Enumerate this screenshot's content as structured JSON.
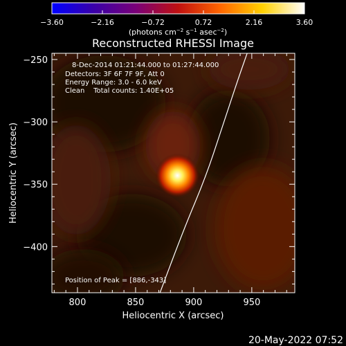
{
  "chart_data": {
    "type": "heatmap",
    "title": "Reconstructed RHESSI Image",
    "xlabel": "Heliocentric X (arcsec)",
    "ylabel": "Heliocentric Y (arcsec)",
    "xlim": [
      778,
      987
    ],
    "ylim": [
      -437,
      -245
    ],
    "x_ticks": [
      800,
      850,
      900,
      950
    ],
    "y_ticks": [
      -250,
      -300,
      -350,
      -400
    ],
    "colorbar": {
      "label_parts": [
        "(photons cm",
        "−2",
        " s",
        "−1",
        " asec",
        "−2",
        ")"
      ],
      "ticks": [
        "−3.60",
        "−2.16",
        "−0.72",
        "0.72",
        "2.16",
        "3.60"
      ],
      "range": [
        -3.6,
        3.6
      ],
      "colormap": [
        "#0000ff",
        "#3a00a8",
        "#7a0078",
        "#c01010",
        "#ff6600",
        "#ffd000",
        "#ffffff"
      ]
    },
    "annotations": [
      "8-Dec-2014 01:21:44.000 to 01:27:44.000",
      "Detectors: 3F 6F 7F 9F, Att 0",
      "Energy Range: 3.0 - 6.0 keV",
      "Clean    Total counts: 1.40E+05"
    ],
    "peak_label": "Position of Peak = [886,-343]",
    "peak": {
      "x": 886,
      "y": -343
    },
    "limb_curve": [
      [
        871,
        -437
      ],
      [
        892,
        -385
      ],
      [
        910,
        -345
      ],
      [
        924,
        -306
      ],
      [
        937,
        -269
      ],
      [
        946,
        -245
      ]
    ],
    "timestamp": "20-May-2022 07:52"
  }
}
